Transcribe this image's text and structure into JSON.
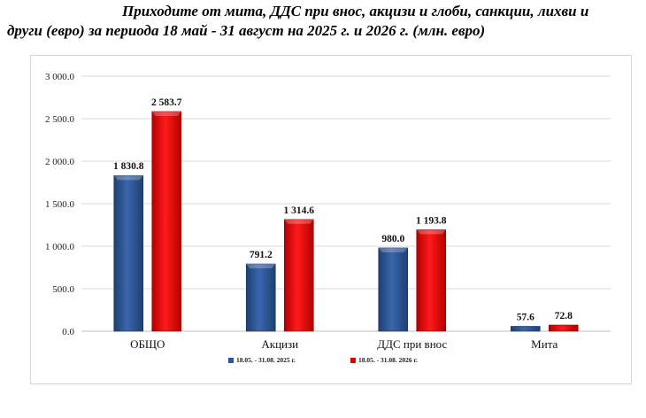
{
  "title": {
    "line1": "Приходите от мита, ДДС при внос, акцизи и глоби, санкции, лихви и",
    "line2": "други (евро) за периода 18 май - 31 август на 2025 г. и 2026 г. (млн. евро)"
  },
  "colors": {
    "series_2025": "#2f5597",
    "series_2026": "#e00000"
  },
  "chart_data": {
    "type": "bar",
    "title": "Приходите от мита, ДДС при внос, акцизи и глоби, санкции, лихви и други (евро) за периода 18 май - 31 август на 2025 г. и 2026 г. (млн. евро)",
    "categories": [
      "ОБЩО",
      "Акцизи",
      "ДДС при внос",
      "Мита"
    ],
    "series": [
      {
        "name": "18.05. - 31.08. 2025 г.",
        "values": [
          1830.8,
          791.2,
          980.0,
          57.6
        ],
        "labels": [
          "1 830.8",
          "791.2",
          "980.0",
          "57.6"
        ]
      },
      {
        "name": "18.05. - 31.08. 2026 г.",
        "values": [
          2583.7,
          1314.6,
          1193.8,
          72.8
        ],
        "labels": [
          "2 583.7",
          "1 314.6",
          "1 193.8",
          "72.8"
        ]
      }
    ],
    "ylim": [
      0,
      3000
    ],
    "yticks": [
      0,
      500,
      1000,
      1500,
      2000,
      2500,
      3000
    ],
    "ytick_labels": [
      "0.0",
      "500.0",
      "1 000.0",
      "1 500.0",
      "2 000.0",
      "2 500.0",
      "3 000.0"
    ],
    "grid": true,
    "legend": "bottom"
  }
}
